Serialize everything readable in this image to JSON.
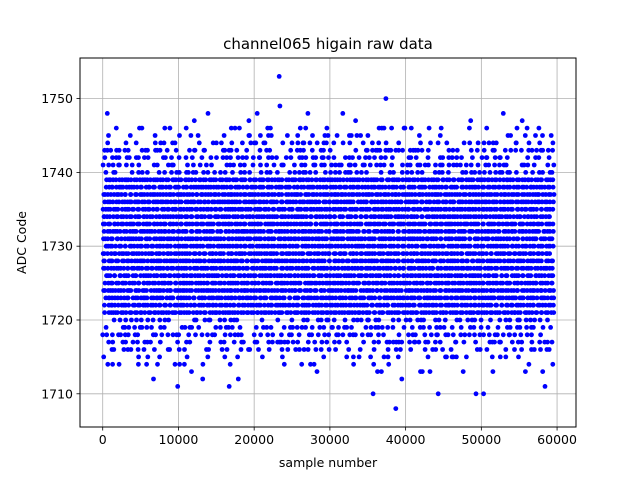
{
  "chart_data": {
    "type": "scatter",
    "title": "channel065 higain raw data",
    "xlabel": "sample number",
    "ylabel": "ADC Code",
    "xlim": [
      -3000,
      62500
    ],
    "ylim": [
      1705.5,
      1755.5
    ],
    "xticks": [
      0,
      10000,
      20000,
      30000,
      40000,
      50000,
      60000
    ],
    "xtick_labels": [
      "0",
      "10000",
      "20000",
      "30000",
      "40000",
      "50000",
      "60000"
    ],
    "yticks": [
      1710,
      1720,
      1730,
      1740,
      1750
    ],
    "ytick_labels": [
      "1710",
      "1720",
      "1730",
      "1740",
      "1750"
    ],
    "grid": true,
    "marker": "circle",
    "color": "#0000ff",
    "n_samples": 59600,
    "dense_range": [
      1718,
      1742
    ],
    "series": [
      {
        "name": "",
        "points": [
          [
            23300,
            1753
          ],
          [
            37400,
            1750
          ],
          [
            23400,
            1749
          ],
          [
            38700,
            1708
          ],
          [
            35700,
            1710
          ],
          [
            44300,
            1710
          ],
          [
            49300,
            1710
          ],
          [
            50300,
            1710
          ],
          [
            9900,
            1711
          ],
          [
            16700,
            1711
          ],
          [
            39500,
            1712
          ],
          [
            58400,
            1711
          ],
          [
            600,
            1748
          ],
          [
            13900,
            1748
          ],
          [
            20400,
            1748
          ],
          [
            27100,
            1748
          ],
          [
            31700,
            1748
          ],
          [
            52900,
            1748
          ],
          [
            6700,
            1712
          ],
          [
            17900,
            1712
          ],
          [
            13200,
            1712
          ],
          [
            42200,
            1713
          ],
          [
            28300,
            1713
          ],
          [
            36800,
            1713
          ],
          [
            19300,
            1747
          ],
          [
            33400,
            1747
          ],
          [
            48600,
            1747
          ],
          [
            55400,
            1747
          ],
          [
            12100,
            1747
          ],
          [
            1800,
            1746
          ],
          [
            26800,
            1746
          ],
          [
            44700,
            1746
          ],
          [
            8200,
            1746
          ],
          [
            57600,
            1746
          ],
          [
            29600,
            1746
          ],
          [
            39900,
            1746
          ]
        ]
      }
    ]
  }
}
